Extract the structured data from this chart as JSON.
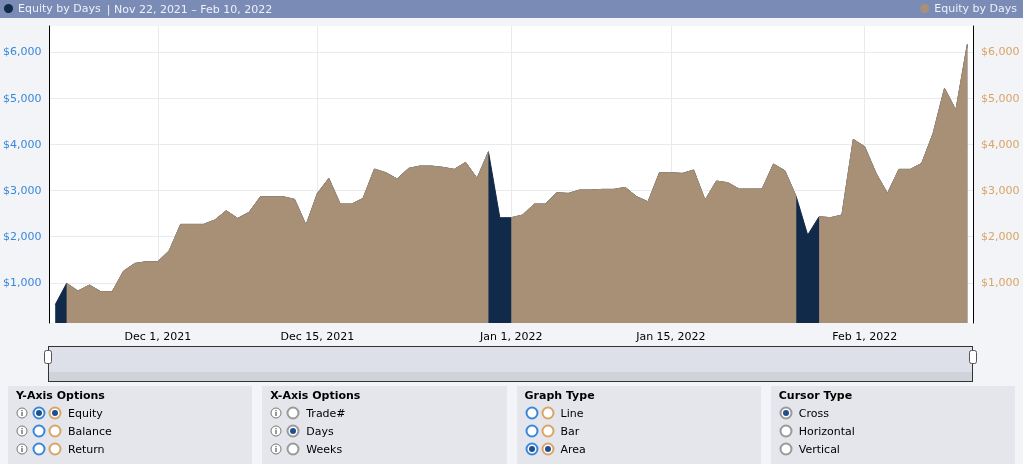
{
  "chart_data": {
    "type": "area",
    "title": "| Nov 22, 2021 – Feb 10, 2022",
    "x": [
      "2021-11-22",
      "2021-11-23",
      "2021-11-24",
      "2021-11-25",
      "2021-11-26",
      "2021-11-27",
      "2021-11-28",
      "2021-11-29",
      "2021-11-30",
      "2021-12-01",
      "2021-12-02",
      "2021-12-03",
      "2021-12-04",
      "2021-12-05",
      "2021-12-06",
      "2021-12-07",
      "2021-12-08",
      "2021-12-09",
      "2021-12-10",
      "2021-12-11",
      "2021-12-12",
      "2021-12-13",
      "2021-12-14",
      "2021-12-15",
      "2021-12-16",
      "2021-12-17",
      "2021-12-18",
      "2021-12-19",
      "2021-12-20",
      "2021-12-21",
      "2021-12-22",
      "2021-12-23",
      "2021-12-24",
      "2021-12-25",
      "2021-12-26",
      "2021-12-27",
      "2021-12-28",
      "2021-12-29",
      "2021-12-30",
      "2021-12-31",
      "2022-01-01",
      "2022-01-02",
      "2022-01-03",
      "2022-01-04",
      "2022-01-05",
      "2022-01-06",
      "2022-01-07",
      "2022-01-08",
      "2022-01-09",
      "2022-01-10",
      "2022-01-11",
      "2022-01-12",
      "2022-01-13",
      "2022-01-14",
      "2022-01-15",
      "2022-01-16",
      "2022-01-17",
      "2022-01-18",
      "2022-01-19",
      "2022-01-20",
      "2022-01-21",
      "2022-01-22",
      "2022-01-23",
      "2022-01-24",
      "2022-01-25",
      "2022-01-26",
      "2022-01-27",
      "2022-01-28",
      "2022-01-29",
      "2022-01-30",
      "2022-01-31",
      "2022-02-01",
      "2022-02-02",
      "2022-02-03",
      "2022-02-04",
      "2022-02-05",
      "2022-02-06",
      "2022-02-07",
      "2022-02-08",
      "2022-02-09",
      "2022-02-10"
    ],
    "series": [
      {
        "name": "Equity by Days",
        "color": "#122a4a",
        "axis": "y",
        "values": [
          525,
          988,
          823,
          952,
          808,
          808,
          1255,
          1421,
          1457,
          1457,
          1695,
          2265,
          2265,
          2265,
          2360,
          2561,
          2395,
          2525,
          2864,
          2864,
          2864,
          2806,
          2251,
          2936,
          3261,
          2705,
          2705,
          2828,
          3463,
          3384,
          3247,
          3478,
          3528,
          3528,
          3500,
          3456,
          3607,
          3261,
          3838,
          2410,
          2410,
          2468,
          2705,
          2705,
          2951,
          2936,
          3009,
          3009,
          3023,
          3023,
          3066,
          2864,
          2756,
          3384,
          3384,
          3369,
          3442,
          2792,
          3203,
          3167,
          3030,
          3030,
          3030,
          3571,
          3427,
          2864,
          2035,
          2431,
          2410,
          2468,
          4105,
          3947,
          3369,
          2936,
          3456,
          3456,
          3586,
          4235,
          5209,
          4740,
          6162
        ]
      },
      {
        "name": "Equity by Days",
        "color": "#a89077",
        "axis": "y2",
        "values": [
          null,
          988,
          823,
          952,
          808,
          808,
          1255,
          1421,
          1457,
          1457,
          1695,
          2265,
          2265,
          2265,
          2360,
          2561,
          2395,
          2525,
          2864,
          2864,
          2864,
          2806,
          2251,
          2936,
          3261,
          2705,
          2705,
          2828,
          3463,
          3384,
          3247,
          3478,
          3528,
          3528,
          3500,
          3456,
          3607,
          3261,
          3838,
          null,
          2410,
          2468,
          2705,
          2705,
          2951,
          2936,
          3009,
          3009,
          3023,
          3023,
          3066,
          2864,
          2756,
          3384,
          3384,
          3369,
          3442,
          2792,
          3203,
          3167,
          3030,
          3030,
          3030,
          3571,
          3427,
          2864,
          null,
          2431,
          2410,
          2468,
          4105,
          3947,
          3369,
          2936,
          3456,
          3456,
          3586,
          4235,
          5209,
          4740,
          6162
        ]
      }
    ],
    "xlim": [
      "2021-11-21T12:00",
      "2022-02-10T12:00"
    ],
    "xticks": [
      {
        "value": "2021-12-01",
        "label": "Dec 1, 2021"
      },
      {
        "value": "2021-12-15",
        "label": "Dec 15, 2021"
      },
      {
        "value": "2022-01-01",
        "label": "Jan 1, 2022"
      },
      {
        "value": "2022-01-15",
        "label": "Jan 15, 2022"
      },
      {
        "value": "2022-02-01",
        "label": "Feb 1, 2022"
      }
    ],
    "ylim": [
      130,
      6560
    ],
    "yticks": [
      {
        "value": 1000,
        "label": "$1,000"
      },
      {
        "value": 2000,
        "label": "$2,000"
      },
      {
        "value": 3000,
        "label": "$3,000"
      },
      {
        "value": 4000,
        "label": "$4,000"
      },
      {
        "value": 5000,
        "label": "$5,000"
      },
      {
        "value": 6000,
        "label": "$6,000"
      }
    ],
    "y2lim": [
      130,
      6560
    ],
    "y2ticks": [
      {
        "value": 1000,
        "label": "$1,000"
      },
      {
        "value": 2000,
        "label": "$2,000"
      },
      {
        "value": 3000,
        "label": "$3,000"
      },
      {
        "value": 4000,
        "label": "$4,000"
      },
      {
        "value": 5000,
        "label": "$5,000"
      },
      {
        "value": 6000,
        "label": "$6,000"
      }
    ],
    "grid": true,
    "legend": "top",
    "annotations": [
      "Y-Axis Options",
      "Equity",
      "Balance",
      "Return",
      "X-Axis Options",
      "Trade#",
      "Days",
      "Weeks",
      "Graph Type",
      "Line",
      "Bar",
      "Area",
      "Cursor Type",
      "Cross",
      "Horizontal",
      "Vertical"
    ]
  }
}
